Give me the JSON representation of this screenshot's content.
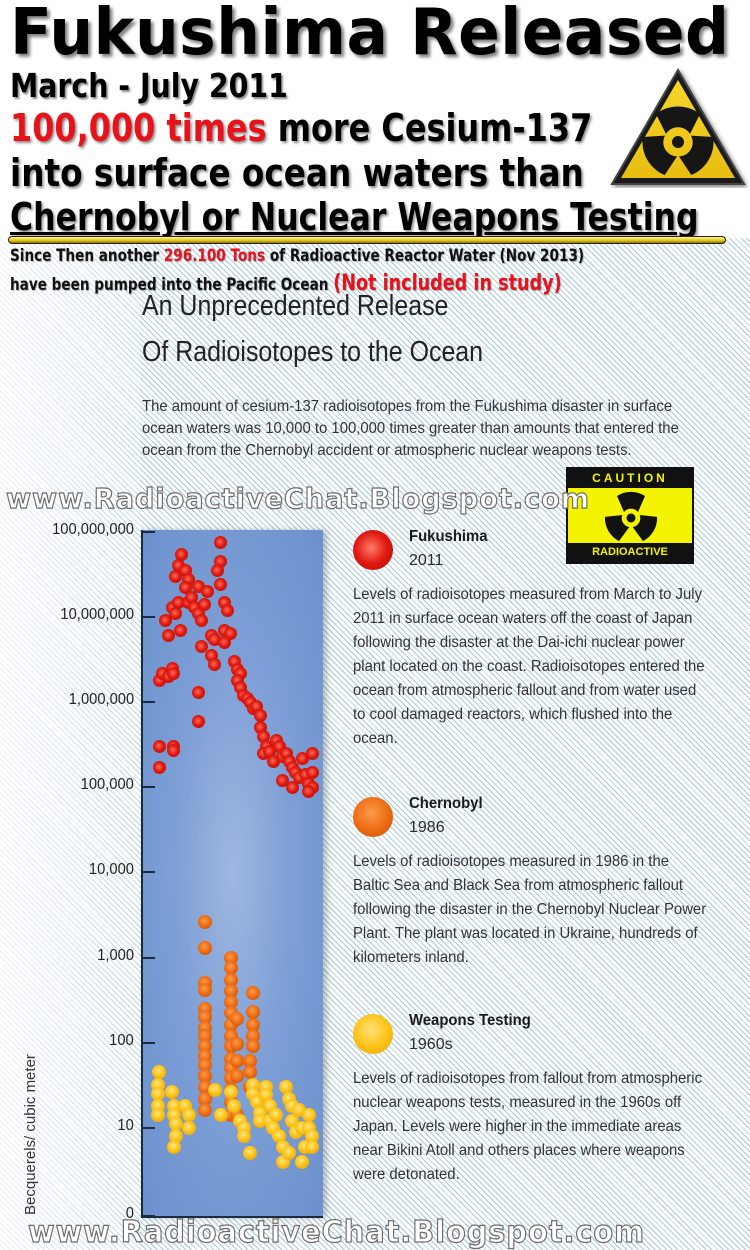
{
  "header": {
    "title": "Fukushima Released",
    "dates": "March - July 2011",
    "line3_highlight": "100,000 times",
    "line3_rest": " more Cesium-137",
    "line4": "into surface ocean waters than",
    "line5": "Chernobyl or Nuclear Weapons Testing",
    "sub1_a": "Since Then another ",
    "sub1_highlight": "296.100 Tons",
    "sub1_b": " of Radioactive Reactor Water (Nov 2013)",
    "sub2_a": "have been pumped into the Pacific Ocean ",
    "sub2_highlight": "(Not included in study)",
    "warning_icon": "radiation-warning-triangle"
  },
  "section": {
    "title_line1": "An Unprecedented Release",
    "title_line2": "Of Radioisotopes to the Ocean",
    "intro": "The amount of cesium-137 radioisotopes from the Fukushima disaster in surface ocean waters was 10,000 to 100,000 times greater than amounts that entered the ocean from the Chernobyl accident or atmospheric nuclear weapons tests."
  },
  "watermark": {
    "top": "www.RadioactiveChat.Blogspot.com",
    "bottom": "www.RadioactiveChat.Blogspot.com"
  },
  "caution_sign": {
    "top_label": "CAUTION",
    "bottom_label": "RADIOACTIVE"
  },
  "legend": [
    {
      "name": "Fukushima",
      "year": "2011",
      "color": "#e01a10",
      "description": "Levels of radioisotopes measured from March to July 2011 in surface ocean waters off the coast of Japan following the disaster at the Dai-ichi nuclear power plant located on the coast. Radioisotopes entered the ocean from atmospheric fallout and from water used to cool damaged reactors, which flushed into the ocean."
    },
    {
      "name": "Chernobyl",
      "year": "1986",
      "color": "#ec6a12",
      "description": "Levels of radioisotopes measured in 1986 in the Baltic Sea and Black Sea from atmospheric fallout following the disaster in the Chernobyl Nuclear Power Plant. The plant was located in Ukraine, hundreds of kilometers inland."
    },
    {
      "name": "Weapons Testing",
      "year": "1960s",
      "color": "#fdc41a",
      "description": "Levels of radioisotopes from fallout from atmospheric nuclear weapons tests, measured in the 1960s off Japan. Levels were higher in the immediate areas near Bikini Atoll and others places where weapons were detonated."
    }
  ],
  "chart_data": {
    "type": "scatter",
    "title": "An Unprecedented Release Of Radioisotopes to the Ocean",
    "xlabel": "",
    "ylabel": "Becquerels/ cubic meter",
    "yscale": "log",
    "ylim": [
      0,
      100000000
    ],
    "yticks": [
      "100,000,000",
      "10,000,000",
      "1,000,000",
      "100,000",
      "10,000",
      "1,000",
      "100",
      "10",
      "0"
    ],
    "grid": false,
    "legend_position": "right",
    "x_note": "Points are jittered horizontally within the plot; x carries no labeled scale (0-100 relative position).",
    "series": [
      {
        "name": "Fukushima (2011)",
        "color": "#e01a10",
        "points": [
          [
            4,
            170000
          ],
          [
            4,
            300000
          ],
          [
            4,
            1800000
          ],
          [
            6,
            2200000
          ],
          [
            10,
            2000000
          ],
          [
            12,
            2500000
          ],
          [
            13,
            2200000
          ],
          [
            8,
            9000000
          ],
          [
            10,
            6000000
          ],
          [
            12,
            13000000
          ],
          [
            14,
            11000000
          ],
          [
            16,
            15000000
          ],
          [
            17,
            7000000
          ],
          [
            14,
            30000000
          ],
          [
            16,
            40000000
          ],
          [
            18,
            55000000
          ],
          [
            20,
            35000000
          ],
          [
            22,
            28000000
          ],
          [
            20,
            22000000
          ],
          [
            22,
            15000000
          ],
          [
            24,
            17000000
          ],
          [
            26,
            13000000
          ],
          [
            28,
            11000000
          ],
          [
            28,
            23000000
          ],
          [
            30,
            9000000
          ],
          [
            32,
            14000000
          ],
          [
            34,
            20000000
          ],
          [
            36,
            6000000
          ],
          [
            38,
            5500000
          ],
          [
            36,
            3500000
          ],
          [
            38,
            2800000
          ],
          [
            30,
            4500000
          ],
          [
            28,
            1300000
          ],
          [
            28,
            600000
          ],
          [
            42,
            75000000
          ],
          [
            42,
            45000000
          ],
          [
            40,
            35000000
          ],
          [
            42,
            24000000
          ],
          [
            44,
            15000000
          ],
          [
            46,
            12000000
          ],
          [
            44,
            7000000
          ],
          [
            48,
            6500000
          ],
          [
            44,
            5000000
          ],
          [
            50,
            3000000
          ],
          [
            52,
            2400000
          ],
          [
            54,
            2200000
          ],
          [
            52,
            1800000
          ],
          [
            54,
            1500000
          ],
          [
            56,
            1200000
          ],
          [
            58,
            1100000
          ],
          [
            60,
            1000000
          ],
          [
            62,
            850000
          ],
          [
            64,
            900000
          ],
          [
            66,
            700000
          ],
          [
            66,
            500000
          ],
          [
            68,
            400000
          ],
          [
            70,
            300000
          ],
          [
            68,
            250000
          ],
          [
            72,
            260000
          ],
          [
            74,
            200000
          ],
          [
            76,
            350000
          ],
          [
            78,
            300000
          ],
          [
            80,
            230000
          ],
          [
            82,
            250000
          ],
          [
            84,
            200000
          ],
          [
            86,
            170000
          ],
          [
            88,
            150000
          ],
          [
            90,
            130000
          ],
          [
            92,
            220000
          ],
          [
            94,
            140000
          ],
          [
            96,
            110000
          ],
          [
            98,
            250000
          ],
          [
            98,
            150000
          ],
          [
            98,
            100000
          ],
          [
            96,
            90000
          ],
          [
            86,
            100000
          ],
          [
            80,
            120000
          ],
          [
            13,
            300000
          ],
          [
            13,
            270000
          ]
        ]
      },
      {
        "name": "Chernobyl (1986)",
        "color": "#ec6a12",
        "points": [
          [
            32,
            2600
          ],
          [
            32,
            1300
          ],
          [
            32,
            500
          ],
          [
            32,
            420
          ],
          [
            32,
            250
          ],
          [
            32,
            200
          ],
          [
            32,
            150
          ],
          [
            32,
            120
          ],
          [
            32,
            90
          ],
          [
            32,
            70
          ],
          [
            32,
            55
          ],
          [
            32,
            40
          ],
          [
            32,
            30
          ],
          [
            32,
            22
          ],
          [
            32,
            16
          ],
          [
            48,
            1000
          ],
          [
            48,
            750
          ],
          [
            48,
            550
          ],
          [
            48,
            400
          ],
          [
            48,
            300
          ],
          [
            48,
            220
          ],
          [
            48,
            160
          ],
          [
            48,
            120
          ],
          [
            48,
            90
          ],
          [
            48,
            65
          ],
          [
            48,
            50
          ],
          [
            48,
            38
          ],
          [
            48,
            28
          ],
          [
            48,
            20
          ],
          [
            48,
            14
          ],
          [
            52,
            190
          ],
          [
            52,
            95
          ],
          [
            52,
            60
          ],
          [
            52,
            40
          ],
          [
            52,
            14
          ],
          [
            62,
            380
          ],
          [
            62,
            230
          ],
          [
            62,
            160
          ],
          [
            62,
            120
          ],
          [
            62,
            90
          ],
          [
            60,
            60
          ],
          [
            60,
            45
          ],
          [
            60,
            30
          ]
        ]
      },
      {
        "name": "Weapons Testing (1960s)",
        "color": "#fdc41a",
        "points": [
          [
            4,
            45
          ],
          [
            3,
            32
          ],
          [
            3,
            25
          ],
          [
            3,
            18
          ],
          [
            3,
            14
          ],
          [
            12,
            26
          ],
          [
            13,
            18
          ],
          [
            13,
            14
          ],
          [
            14,
            11
          ],
          [
            14,
            8
          ],
          [
            13,
            6
          ],
          [
            20,
            18
          ],
          [
            22,
            14
          ],
          [
            22,
            10
          ],
          [
            38,
            28
          ],
          [
            42,
            14
          ],
          [
            48,
            26
          ],
          [
            50,
            18
          ],
          [
            54,
            12
          ],
          [
            56,
            10
          ],
          [
            56,
            8
          ],
          [
            62,
            32
          ],
          [
            62,
            25
          ],
          [
            64,
            20
          ],
          [
            66,
            15
          ],
          [
            66,
            12
          ],
          [
            70,
            30
          ],
          [
            70,
            24
          ],
          [
            72,
            18
          ],
          [
            72,
            12
          ],
          [
            74,
            10
          ],
          [
            76,
            14
          ],
          [
            78,
            8
          ],
          [
            80,
            6
          ],
          [
            82,
            30
          ],
          [
            84,
            22
          ],
          [
            86,
            18
          ],
          [
            86,
            12
          ],
          [
            88,
            9
          ],
          [
            90,
            16
          ],
          [
            92,
            10
          ],
          [
            94,
            6
          ],
          [
            96,
            14
          ],
          [
            96,
            10
          ],
          [
            98,
            8
          ],
          [
            98,
            6
          ],
          [
            80,
            4
          ],
          [
            92,
            4
          ],
          [
            60,
            5
          ],
          [
            84,
            5
          ]
        ]
      }
    ]
  }
}
